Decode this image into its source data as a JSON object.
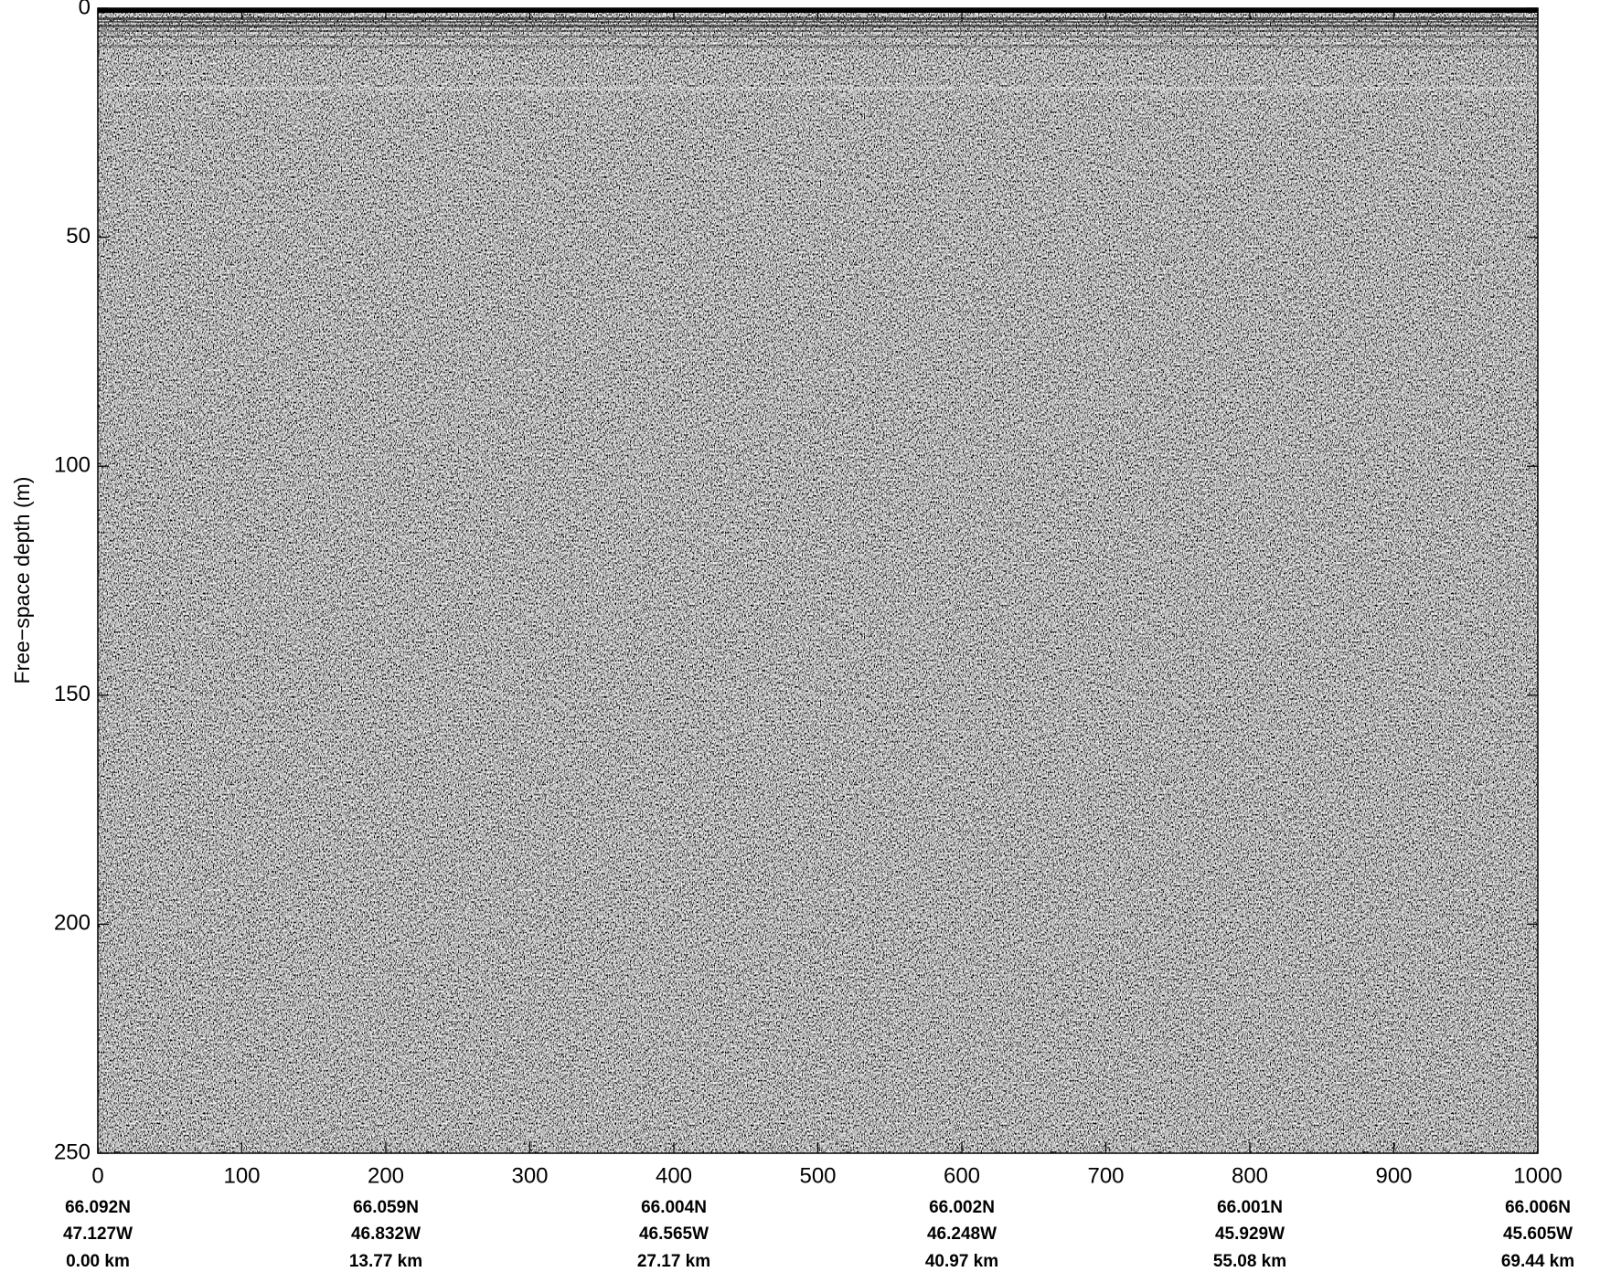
{
  "chart_data": {
    "type": "radargram",
    "ylabel": "Free−space depth (m)",
    "xlim": [
      0,
      1000
    ],
    "xticks": [
      0,
      100,
      200,
      300,
      400,
      500,
      600,
      700,
      800,
      900,
      1000
    ],
    "ylim": [
      0,
      250
    ],
    "yticks": [
      0,
      50,
      100,
      150,
      200,
      250
    ],
    "y_reversed": true,
    "grid": false,
    "annotations": [
      {
        "x": 0,
        "lines": [
          "66.092N",
          "47.127W",
          "0.00 km"
        ]
      },
      {
        "x": 200,
        "lines": [
          "66.059N",
          "46.832W",
          "13.77 km"
        ]
      },
      {
        "x": 400,
        "lines": [
          "66.004N",
          "46.565W",
          "27.17 km"
        ]
      },
      {
        "x": 600,
        "lines": [
          "66.002N",
          "46.248W",
          "40.97 km"
        ]
      },
      {
        "x": 800,
        "lines": [
          "66.001N",
          "45.929W",
          "55.08 km"
        ]
      },
      {
        "x": 1000,
        "lines": [
          "66.006N",
          "45.605W",
          "69.44 km"
        ]
      }
    ]
  }
}
